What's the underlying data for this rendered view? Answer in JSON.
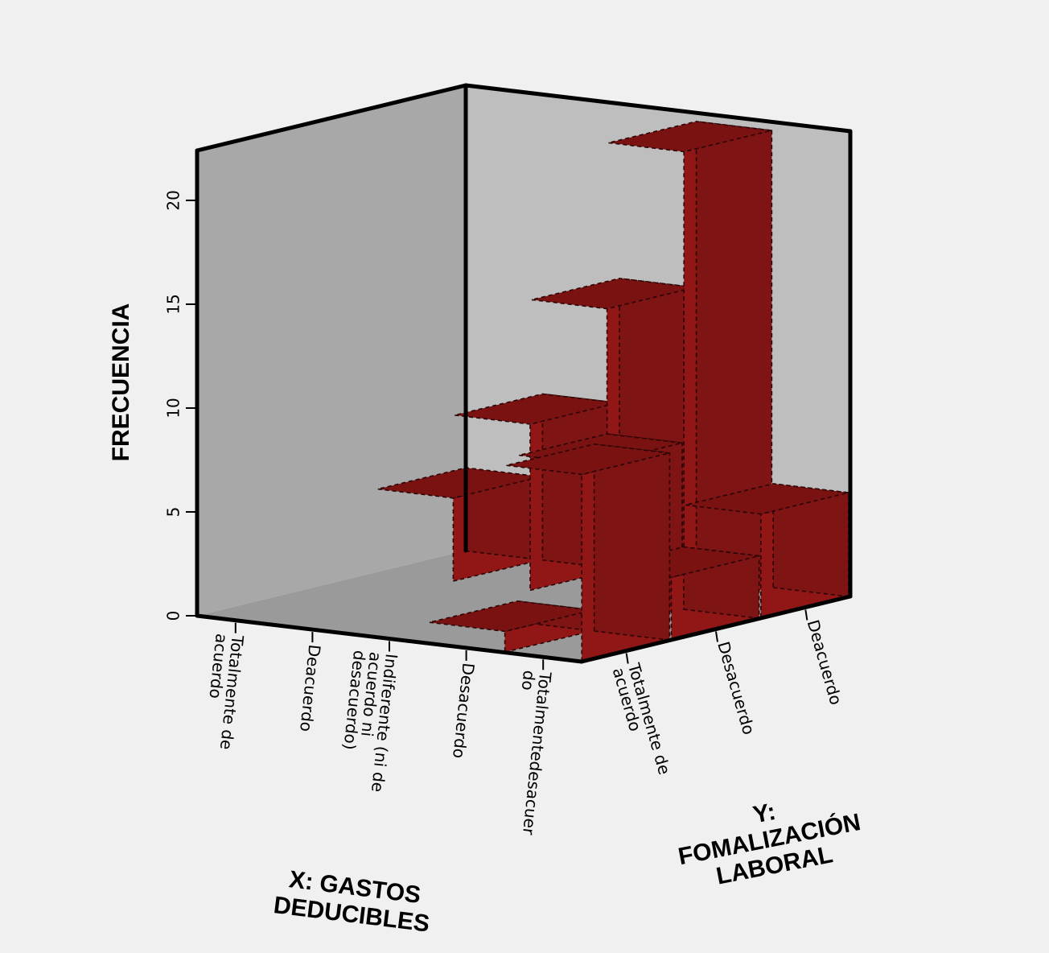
{
  "chart_data": {
    "type": "bar3d",
    "zlabel": "FRECUENCIA",
    "xlabel_lines": [
      "X: GASTOS",
      "DEDUCIBLES"
    ],
    "ylabel_lines": [
      "Y:",
      "FOMALIZACIÓN",
      "LABORAL"
    ],
    "zlim": [
      0,
      22
    ],
    "z_ticks": [
      0,
      5,
      10,
      15,
      20
    ],
    "grid": false,
    "legend": "none",
    "x_categories": [
      [
        "Totalmente de",
        "acuerdo"
      ],
      [
        "Deacuerdo"
      ],
      [
        "Indiferente (ni de",
        "acuerdo ni",
        "desacuerdo)"
      ],
      [
        "Desacuerdo"
      ],
      [
        "Totalmentedesacuer",
        "do"
      ]
    ],
    "y_categories": [
      [
        "Totalmente de",
        "acuerdo"
      ],
      [
        "Desacuerdo"
      ],
      [
        "Deacuerdo"
      ]
    ],
    "bars": [
      {
        "x": 3,
        "y": 0,
        "value": 1
      },
      {
        "x": 4,
        "y": 0,
        "value": 9
      },
      {
        "x": 4,
        "y": 1,
        "value": 3
      },
      {
        "x": 4,
        "y": 2,
        "value": 5
      },
      {
        "x": 3,
        "y": 1,
        "value": 8
      },
      {
        "x": 3,
        "y": 2,
        "value": 22
      },
      {
        "x": 2,
        "y": 2,
        "value": 14
      },
      {
        "x": 1,
        "y": 2,
        "value": 8
      },
      {
        "x": 0,
        "y": 2,
        "value": 4
      }
    ],
    "colors": {
      "bar_front": "#911616",
      "bar_side": "#7e1414",
      "bar_top": "#7a1212",
      "back_wall": "#a8a8a8",
      "right_wall": "#bebebe",
      "floor": "#9a9a9a",
      "background": "#f0f0f0"
    }
  }
}
